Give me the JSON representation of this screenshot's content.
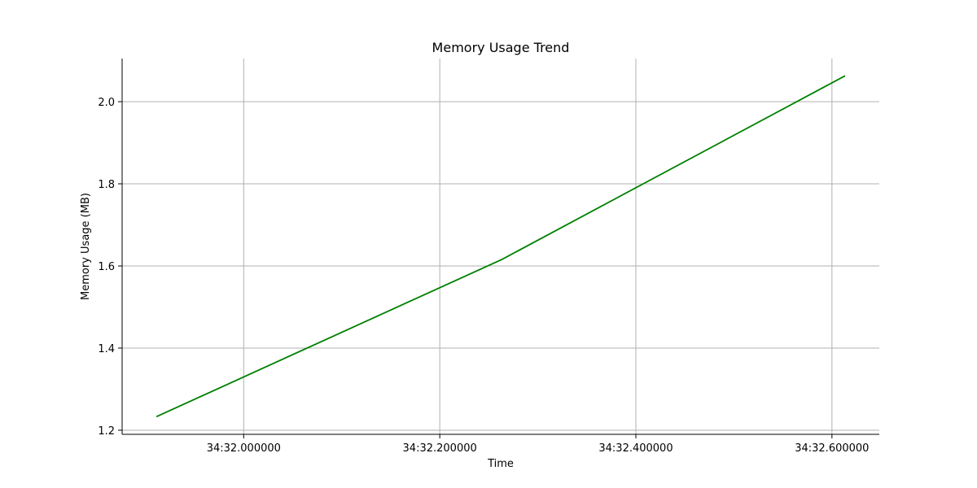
{
  "chart_data": {
    "type": "line",
    "title": "Memory Usage Trend",
    "xlabel": "Time",
    "ylabel": "Memory Usage (MB)",
    "grid": true,
    "x_tick_labels": [
      "34:32.000000",
      "34:32.200000",
      "34:32.400000",
      "34:32.600000"
    ],
    "x_tick_values": [
      0.0,
      0.2,
      0.4,
      0.6
    ],
    "xlim": [
      -0.124,
      0.6483
    ],
    "y_tick_labels": [
      "1.2",
      "1.4",
      "1.6",
      "1.8",
      "2.0"
    ],
    "y_tick_values": [
      1.2,
      1.4,
      1.6,
      1.8,
      2.0
    ],
    "ylim": [
      1.19,
      2.105
    ],
    "series": [
      {
        "name": "Memory Usage",
        "color": "#008000",
        "x": [
          -0.089,
          0.2635,
          0.6134
        ],
        "y": [
          1.233,
          1.616,
          2.063
        ]
      }
    ]
  }
}
